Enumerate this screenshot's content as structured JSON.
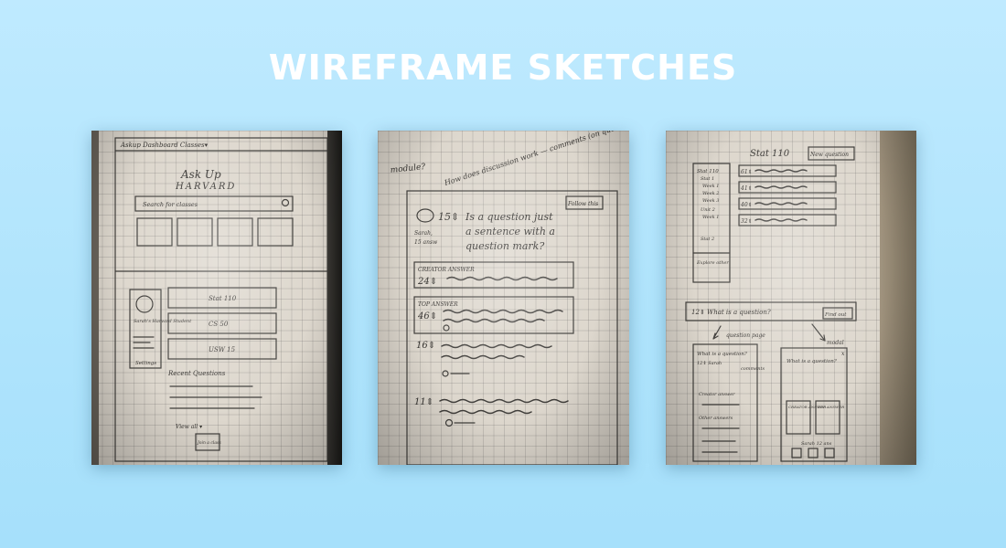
{
  "title": "WIREFRAME SKETCHES",
  "sketch_1": {
    "nav": "Askup  Dashboard  Classes▾",
    "logo_top": "Ask Up",
    "logo_bottom": "HARVARD",
    "search": "Search for classes",
    "profile_name": "Sarah's Harvard Student",
    "settings": "Settings",
    "class_1": "Stat 110",
    "class_2": "CS 50",
    "class_3": "USW 15",
    "recent": "Recent Questions",
    "view_all": "View all ▾",
    "button": "Join a class"
  },
  "sketch_2": {
    "note": "module?",
    "note_2": "How does discussion work — comments (on question or answer)??",
    "follow": "Follow this",
    "question_votes": "15⇕",
    "question_text_1": "Is a question just",
    "question_text_2": "a sentence with a",
    "question_text_3": "question mark?",
    "asker_1": "Sarah,",
    "asker_2": "15 answ",
    "creator_label": "CREATOR ANSWER",
    "creator_votes": "24⇕",
    "top_label": "TOP ANSWER",
    "top_votes": "46⇕",
    "answer_3_votes": "16⇕",
    "answer_4_votes": "11⇕"
  },
  "sketch_3": {
    "header": "Stat 110",
    "new_question": "New question",
    "side_1": "Stat 110",
    "side_2": "Stat 1",
    "side_3": "Week 1",
    "side_4": "Week 2",
    "side_5": "Week 3",
    "side_6": "Unit 2",
    "side_7": "Week 1",
    "side_8": "Stat 2",
    "side_9": "Explore other",
    "row_1": "61⇕",
    "row_2": "41⇕",
    "row_3": "40⇕",
    "row_4": "32⇕",
    "bottom_question": "12⇕  What is a question?",
    "find_out": "Find out",
    "question_page": "question page",
    "modal": "modal",
    "left_title": "What is a question?",
    "left_sub": "12⇕ Sarah",
    "comments": "comments",
    "creator_answer": "Creator answer",
    "other_answers": "Other answers",
    "right_title": "What is a question?",
    "btn_1": "CREATOR ANSWER",
    "btn_2": "TOP ANSWER",
    "right_note": "Sarah 12 ans",
    "x": "x"
  }
}
